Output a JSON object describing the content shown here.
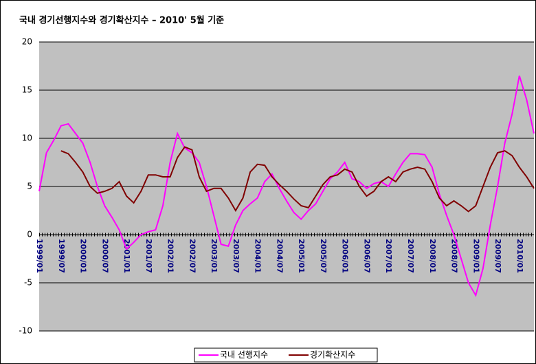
{
  "chart_data": {
    "type": "line",
    "title": "국내 경기선행지수와 경기확산지수 – 2010' 5월 기준",
    "categories": [
      "1999/01",
      null,
      null,
      "1999/07",
      null,
      null,
      "2000/01",
      null,
      null,
      "2000/07",
      null,
      null,
      "2001/01",
      null,
      null,
      "2001/07",
      null,
      null,
      "2002/01",
      null,
      null,
      "2002/07",
      null,
      null,
      "2003/01",
      null,
      null,
      "2003/07",
      null,
      null,
      "2004/01",
      null,
      null,
      "2004/07",
      null,
      null,
      "2005/01",
      null,
      null,
      "2005/07",
      null,
      null,
      "2006/01",
      null,
      null,
      "2006/07",
      null,
      null,
      "2007/01",
      null,
      null,
      "2007/07",
      null,
      null,
      "2008/01",
      null,
      null,
      "2008/07",
      null,
      null,
      "2009/01",
      null,
      null,
      "2009/07",
      null,
      null,
      "2010/01",
      null,
      null
    ],
    "series": [
      {
        "name": "국내 선행지수",
        "color": "#ff00ff",
        "values": [
          4.5,
          8.5,
          9.8,
          11.3,
          11.5,
          10.5,
          9.5,
          7.5,
          5.0,
          3.0,
          1.8,
          0.5,
          -1.5,
          -0.8,
          0.0,
          0.3,
          0.5,
          3,
          7.5,
          10.5,
          9,
          8.5,
          7.5,
          5,
          2,
          -1,
          -1.2,
          1,
          2.5,
          3.2,
          3.8,
          5.5,
          6.3,
          4.8,
          3.5,
          2.3,
          1.6,
          2.5,
          3.2,
          4.5,
          5.8,
          6.5,
          7.5,
          5.8,
          5.5,
          4.8,
          5.3,
          5.5,
          5.0,
          6.3,
          7.5,
          8.4,
          8.4,
          8.3,
          7,
          4.2,
          2,
          0,
          -2.5,
          -5,
          -6.3,
          -3.5,
          1,
          5,
          9.5,
          12.5,
          16.5,
          14,
          10.5
        ]
      },
      {
        "name": "경기확산지수",
        "color": "#800000",
        "values": [
          null,
          null,
          null,
          8.7,
          8.4,
          7.5,
          6.5,
          5,
          4.3,
          4.5,
          4.8,
          5.5,
          4,
          3.3,
          4.5,
          6.2,
          6.2,
          6,
          6,
          8,
          9.1,
          8.8,
          6,
          4.5,
          4.8,
          4.8,
          3.8,
          2.5,
          3.8,
          6.5,
          7.3,
          7.2,
          6,
          5.2,
          4.5,
          3.7,
          3,
          2.8,
          4,
          5.2,
          6,
          6.2,
          6.8,
          6.5,
          5,
          4,
          4.5,
          5.5,
          6,
          5.5,
          6.5,
          6.8,
          7,
          6.8,
          5.5,
          3.8,
          3,
          3.5,
          3,
          2.4,
          3,
          5,
          7,
          8.5,
          8.7,
          8.2,
          7,
          6,
          4.8
        ]
      }
    ],
    "ylim": [
      -10,
      20
    ],
    "yticks": [
      -10,
      -5,
      0,
      5,
      10,
      15,
      20
    ],
    "grid": true
  }
}
